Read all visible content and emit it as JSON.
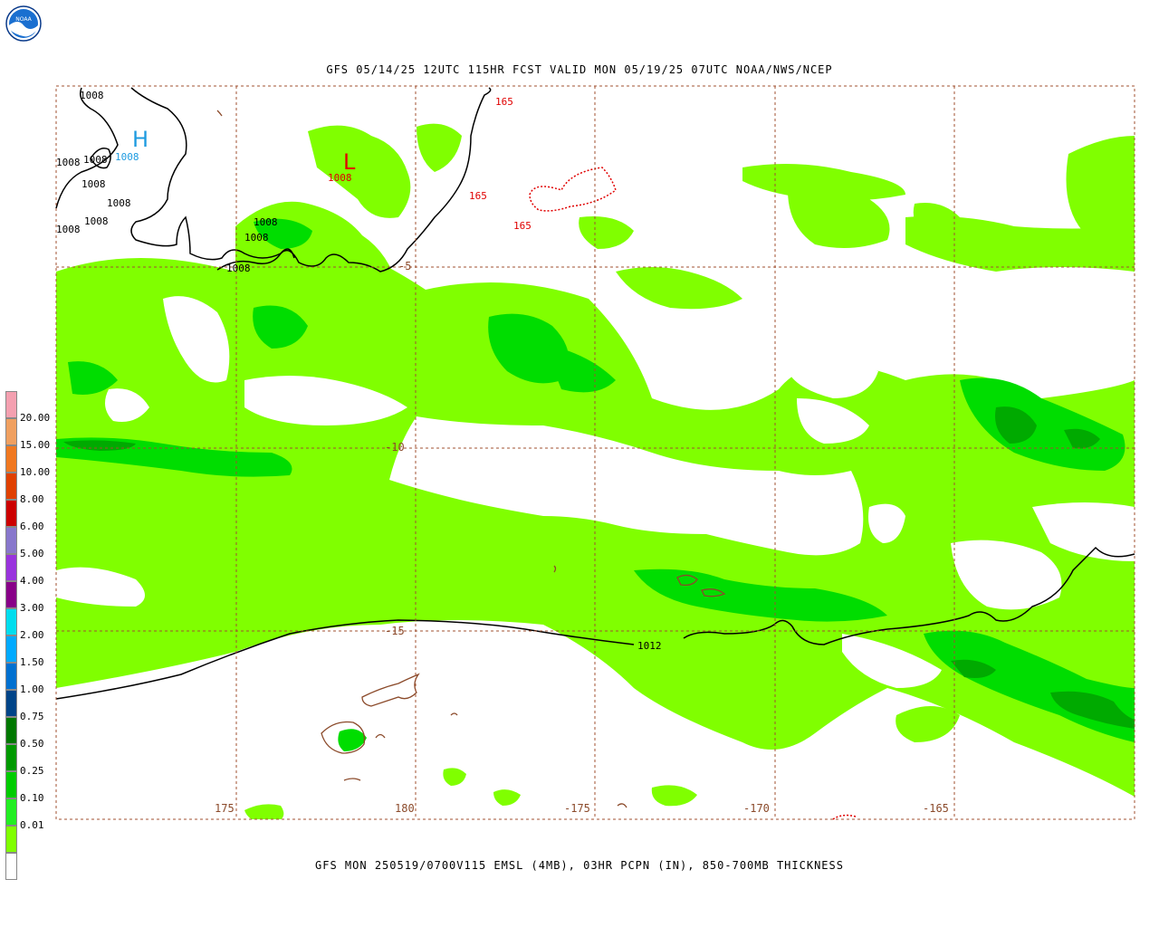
{
  "header": {
    "title": "GFS 05/14/25 12UTC 115HR FCST VALID MON 05/19/25 07UTC NOAA/NWS/NCEP",
    "logo_text": "NOAA"
  },
  "footer": {
    "caption": "GFS MON 250519/0700V115 EMSL (4MB), 03HR PCPN (IN), 850-700MB THICKNESS"
  },
  "grid": {
    "lat_labels": [
      "-5",
      "-10",
      "-15"
    ],
    "lon_labels": [
      "175",
      "180",
      "-175",
      "-170",
      "-165"
    ]
  },
  "pressure_systems": [
    {
      "symbol": "H",
      "value": "1008",
      "color": "#1e9be0"
    },
    {
      "symbol": "L",
      "value": "1008",
      "color": "#e00000"
    }
  ],
  "isobar_labels": [
    "1008",
    "1008",
    "1008",
    "1008",
    "1008",
    "1008",
    "1008",
    "1008",
    "1008",
    "1008",
    "1012"
  ],
  "thickness_labels": [
    "165",
    "165",
    "165"
  ],
  "colors": {
    "precip_light": "#80ff00",
    "precip_mid": "#00dd00",
    "precip_heavy": "#00aa00",
    "thickness": "#e00000",
    "coast": "#8b4a2a",
    "grid": "#a05030"
  },
  "legend": [
    {
      "label": "",
      "color": "#ffffff"
    },
    {
      "label": "0.01",
      "color": "#80ff00"
    },
    {
      "label": "0.10",
      "color": "#22ee22"
    },
    {
      "label": "0.25",
      "color": "#00cc00"
    },
    {
      "label": "0.50",
      "color": "#009900"
    },
    {
      "label": "0.75",
      "color": "#007700"
    },
    {
      "label": "1.00",
      "color": "#004488"
    },
    {
      "label": "1.50",
      "color": "#0070d0"
    },
    {
      "label": "2.00",
      "color": "#00aaff"
    },
    {
      "label": "3.00",
      "color": "#00ddee"
    },
    {
      "label": "4.00",
      "color": "#880088"
    },
    {
      "label": "5.00",
      "color": "#9933dd"
    },
    {
      "label": "6.00",
      "color": "#8877cc"
    },
    {
      "label": "8.00",
      "color": "#cc0000"
    },
    {
      "label": "10.00",
      "color": "#e04000"
    },
    {
      "label": "15.00",
      "color": "#f07820"
    },
    {
      "label": "20.00",
      "color": "#f0a060"
    },
    {
      "label": "",
      "color": "#f4a0b0"
    }
  ]
}
